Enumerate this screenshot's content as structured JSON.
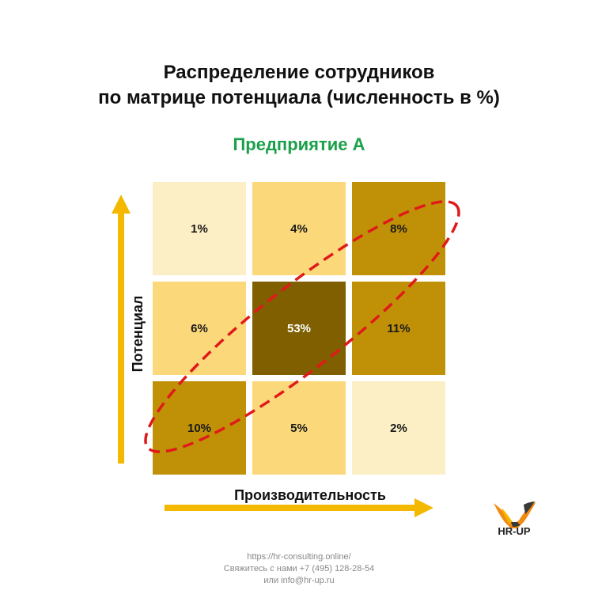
{
  "title_line1": "Распределение сотрудников",
  "title_line2": "по матрице потенциала (численность в %)",
  "subtitle": "Предприятие А",
  "chart_data": {
    "type": "heatmap",
    "xlabel": "Производительность",
    "ylabel": "Потенциал",
    "rows": [
      {
        "cells": [
          {
            "value": 1,
            "label": "1%"
          },
          {
            "value": 4,
            "label": "4%"
          },
          {
            "value": 8,
            "label": "8%"
          }
        ]
      },
      {
        "cells": [
          {
            "value": 6,
            "label": "6%"
          },
          {
            "value": 53,
            "label": "53%"
          },
          {
            "value": 11,
            "label": "11%"
          }
        ]
      },
      {
        "cells": [
          {
            "value": 10,
            "label": "10%"
          },
          {
            "value": 5,
            "label": "5%"
          },
          {
            "value": 2,
            "label": "2%"
          }
        ]
      }
    ],
    "highlight": "dashed red ellipse along the diagonal from bottom-left to top-right",
    "colors": {
      "lightest": "#fdefc5",
      "light": "#fbd87a",
      "medium": "#c09106",
      "dark": "#7f5f00",
      "arrow": "#f5b800",
      "highlight": "#e01a1a"
    }
  },
  "logo": {
    "text": "HR-UP",
    "icon": "eagle-logo-icon"
  },
  "footer": {
    "line1": "https://hr-consulting.online/",
    "line2": "Свяжитесь с нами +7 (495) 128-28-54",
    "line3": "или info@hr-up.ru"
  }
}
